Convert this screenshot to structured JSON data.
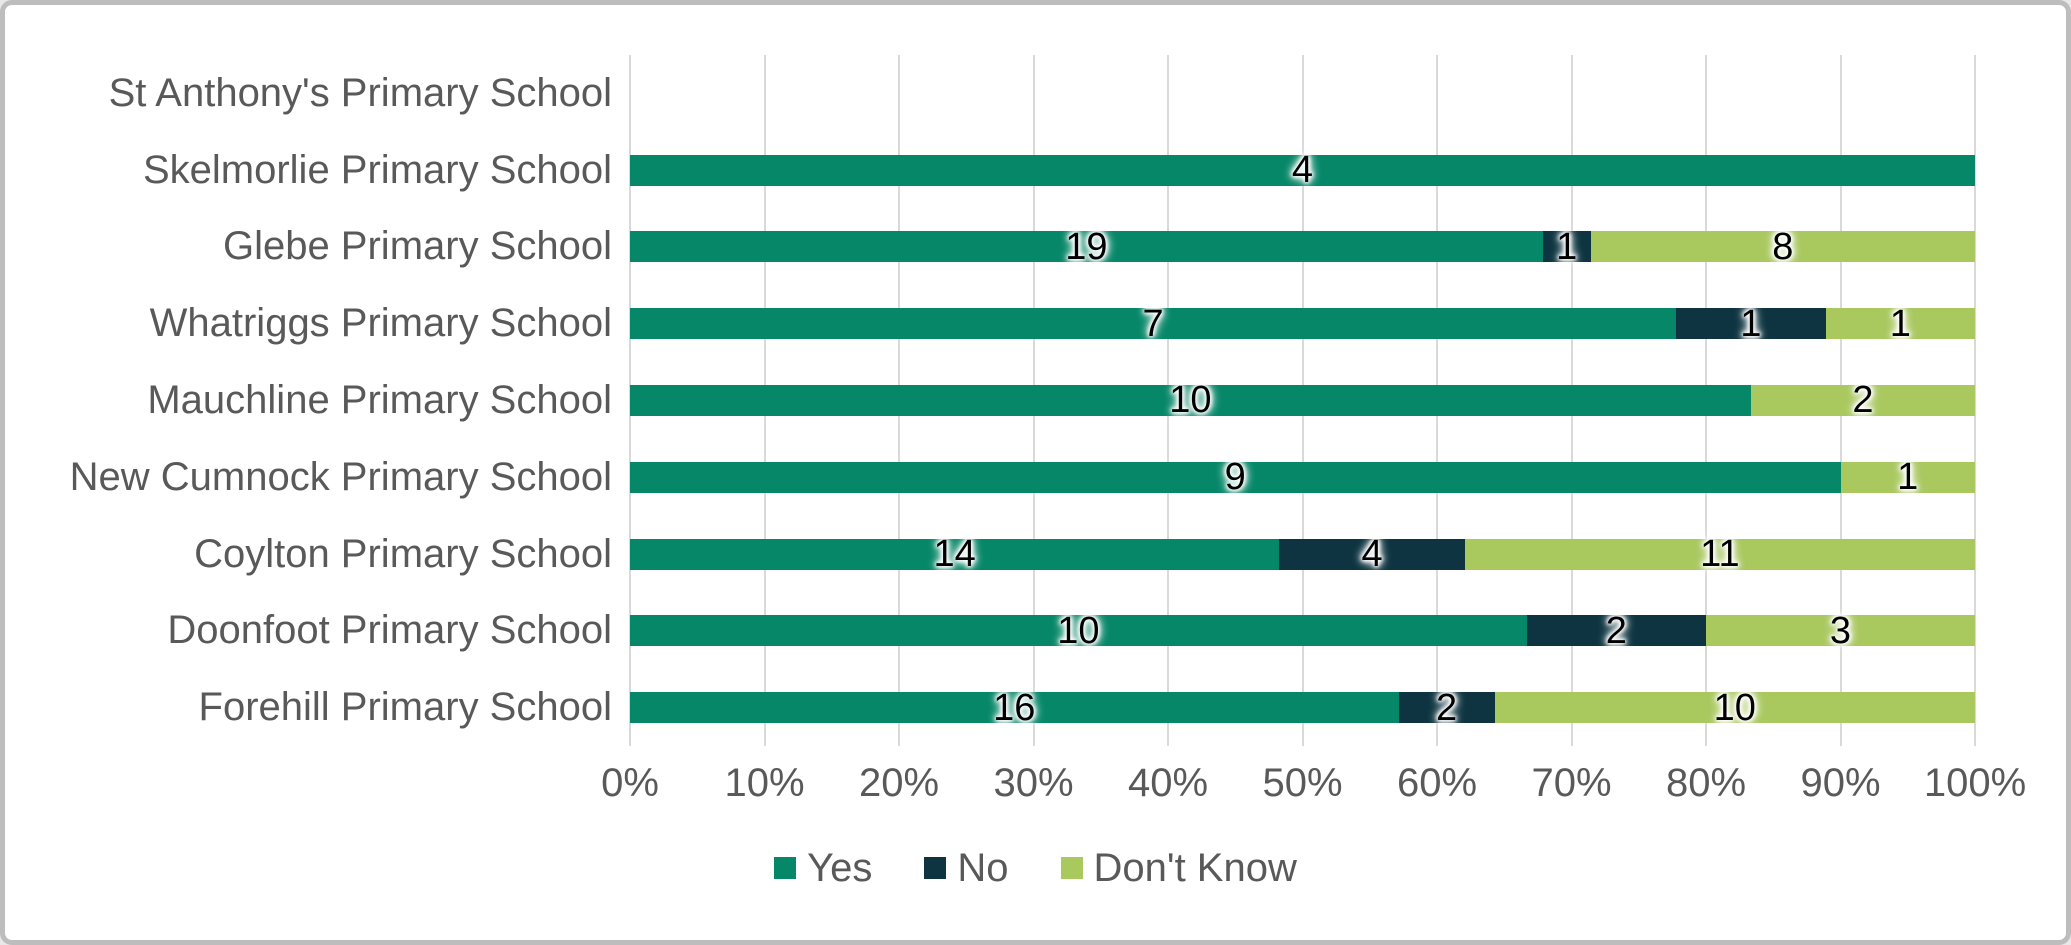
{
  "frame": {
    "background": "#ffffff",
    "border_color": "#bdbdbd"
  },
  "styles": {
    "text_color": "#595959",
    "gridline_color": "#d9d9d9",
    "data_label_color": "#000000"
  },
  "chart_data": {
    "type": "bar",
    "subtype": "stacked-100-percent",
    "orientation": "horizontal",
    "title": "",
    "xlabel": "",
    "ylabel": "",
    "grid": true,
    "categories": [
      "St Anthony's Primary School",
      "Skelmorlie Primary School",
      "Glebe Primary School",
      "Whatriggs Primary School",
      "Mauchline Primary School",
      "New Cumnock Primary School",
      "Coylton Primary School",
      "Doonfoot Primary School",
      "Forehill Primary School"
    ],
    "series": [
      {
        "name": "Yes",
        "color": "#068768",
        "values": [
          0,
          4,
          19,
          7,
          10,
          9,
          14,
          10,
          16
        ]
      },
      {
        "name": "No",
        "color": "#0d3440",
        "values": [
          0,
          0,
          1,
          1,
          0,
          0,
          4,
          2,
          2
        ]
      },
      {
        "name": "Don't Know",
        "color": "#a9c85e",
        "values": [
          0,
          0,
          8,
          1,
          2,
          1,
          11,
          3,
          10
        ]
      }
    ],
    "x_axis": {
      "min": "0%",
      "max": "100%",
      "tick_labels": [
        "0%",
        "10%",
        "20%",
        "30%",
        "40%",
        "50%",
        "60%",
        "70%",
        "80%",
        "90%",
        "100%"
      ]
    },
    "legend": {
      "position": "bottom",
      "entries": [
        "Yes",
        "No",
        "Don't Know"
      ]
    }
  }
}
